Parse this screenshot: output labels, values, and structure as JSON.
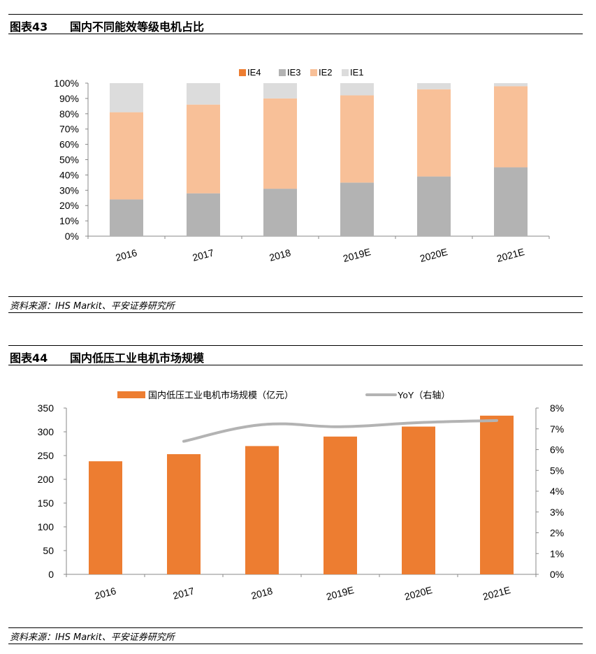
{
  "figure43": {
    "label": "图表43",
    "title": "国内不同能效等级电机占比",
    "source": "资料来源：IHS Markit、平安证券研究所"
  },
  "figure44": {
    "label": "图表44",
    "title": "国内低压工业电机市场规模",
    "source": "资料来源：IHS Markit、平安证券研究所"
  },
  "chart_data": [
    {
      "type": "bar",
      "stacked": true,
      "categories": [
        "2016",
        "2017",
        "2018",
        "2019E",
        "2020E",
        "2021E"
      ],
      "series": [
        {
          "name": "IE4",
          "color": "#ED7D31",
          "values": [
            0,
            0,
            0,
            0,
            0,
            0
          ]
        },
        {
          "name": "IE3",
          "color": "#B3B3B3",
          "values": [
            24,
            28,
            31,
            35,
            39,
            45
          ]
        },
        {
          "name": "IE2",
          "color": "#F8C098",
          "values": [
            57,
            58,
            59,
            57,
            57,
            53
          ]
        },
        {
          "name": "IE1",
          "color": "#DCDCDC",
          "values": [
            19,
            14,
            10,
            8,
            4,
            2
          ]
        }
      ],
      "yticks": [
        "0%",
        "10%",
        "20%",
        "30%",
        "40%",
        "50%",
        "60%",
        "70%",
        "80%",
        "90%",
        "100%"
      ],
      "ylim": [
        0,
        100
      ],
      "legend": "top-center"
    },
    {
      "type": "bar",
      "categories": [
        "2016",
        "2017",
        "2018",
        "2019E",
        "2020E",
        "2021E"
      ],
      "series": [
        {
          "name": "国内低压工业电机市场规模（亿元）",
          "kind": "bar",
          "axis": "left",
          "color": "#ED7D31",
          "values": [
            238,
            253,
            270,
            290,
            311,
            334
          ]
        },
        {
          "name": "YoY（右轴）",
          "kind": "line",
          "axis": "right",
          "color": "#B3B3B3",
          "values": [
            null,
            6.4,
            7.2,
            7.1,
            7.3,
            7.4
          ]
        }
      ],
      "yticks_left": [
        "0",
        "50",
        "100",
        "150",
        "200",
        "250",
        "300",
        "350"
      ],
      "ylim_left": [
        0,
        350
      ],
      "yticks_right": [
        "0%",
        "1%",
        "2%",
        "3%",
        "4%",
        "5%",
        "6%",
        "7%",
        "8%"
      ],
      "ylim_right": [
        0,
        8
      ],
      "legend": "top-center"
    }
  ]
}
